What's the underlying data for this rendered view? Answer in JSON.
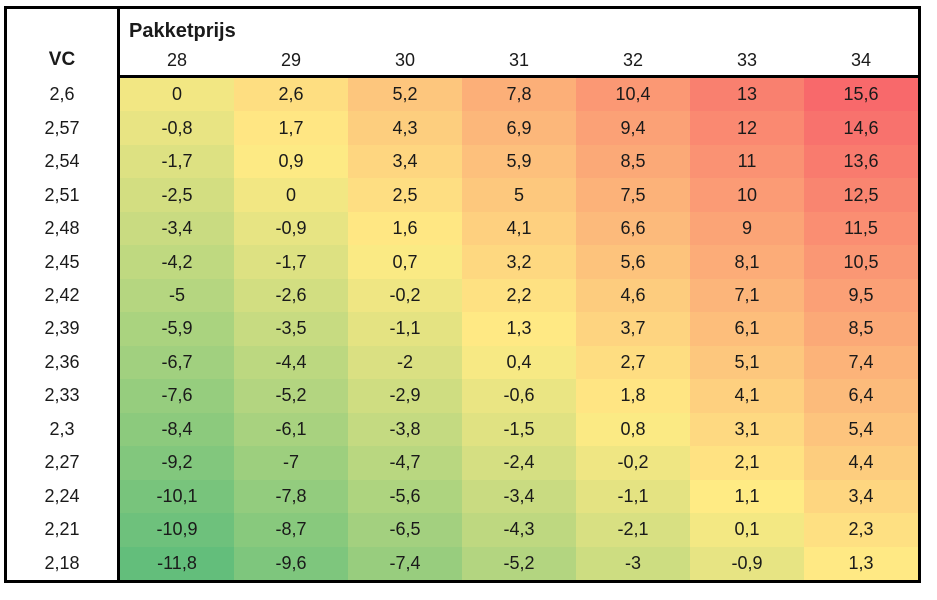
{
  "chart_data": {
    "type": "heatmap",
    "title": "Pakketprijs",
    "ylabel": "VC",
    "x": [
      28,
      29,
      30,
      31,
      32,
      33,
      34
    ],
    "y": [
      2.6,
      2.57,
      2.54,
      2.51,
      2.48,
      2.45,
      2.42,
      2.39,
      2.36,
      2.33,
      2.3,
      2.27,
      2.24,
      2.21,
      2.18
    ],
    "values": [
      [
        0,
        2.6,
        5.2,
        7.8,
        10.4,
        13,
        15.6
      ],
      [
        -0.8,
        1.7,
        4.3,
        6.9,
        9.4,
        12,
        14.6
      ],
      [
        -1.7,
        0.9,
        3.4,
        5.9,
        8.5,
        11,
        13.6
      ],
      [
        -2.5,
        0,
        2.5,
        5,
        7.5,
        10,
        12.5
      ],
      [
        -3.4,
        -0.9,
        1.6,
        4.1,
        6.6,
        9,
        11.5
      ],
      [
        -4.2,
        -1.7,
        0.7,
        3.2,
        5.6,
        8.1,
        10.5
      ],
      [
        -5,
        -2.6,
        -0.2,
        2.2,
        4.6,
        7.1,
        9.5
      ],
      [
        -5.9,
        -3.5,
        -1.1,
        1.3,
        3.7,
        6.1,
        8.5
      ],
      [
        -6.7,
        -4.4,
        -2,
        0.4,
        2.7,
        5.1,
        7.4
      ],
      [
        -7.6,
        -5.2,
        -2.9,
        -0.6,
        1.8,
        4.1,
        6.4
      ],
      [
        -8.4,
        -6.1,
        -3.8,
        -1.5,
        0.8,
        3.1,
        5.4
      ],
      [
        -9.2,
        -7,
        -4.7,
        -2.4,
        -0.2,
        2.1,
        4.4
      ],
      [
        -10.1,
        -7.8,
        -5.6,
        -3.4,
        -1.1,
        1.1,
        3.4
      ],
      [
        -10.9,
        -8.7,
        -6.5,
        -4.3,
        -2.1,
        0.1,
        2.3
      ],
      [
        -11.8,
        -9.6,
        -7.4,
        -5.2,
        -3,
        -0.9,
        1.3
      ]
    ],
    "decimal_separator": ",",
    "colorscale": {
      "type": "3-color-scale",
      "min_color": "#63BE7B",
      "mid_color": "#FFEB84",
      "max_color": "#F8696B",
      "mid_anchor": "50th percentile"
    }
  }
}
